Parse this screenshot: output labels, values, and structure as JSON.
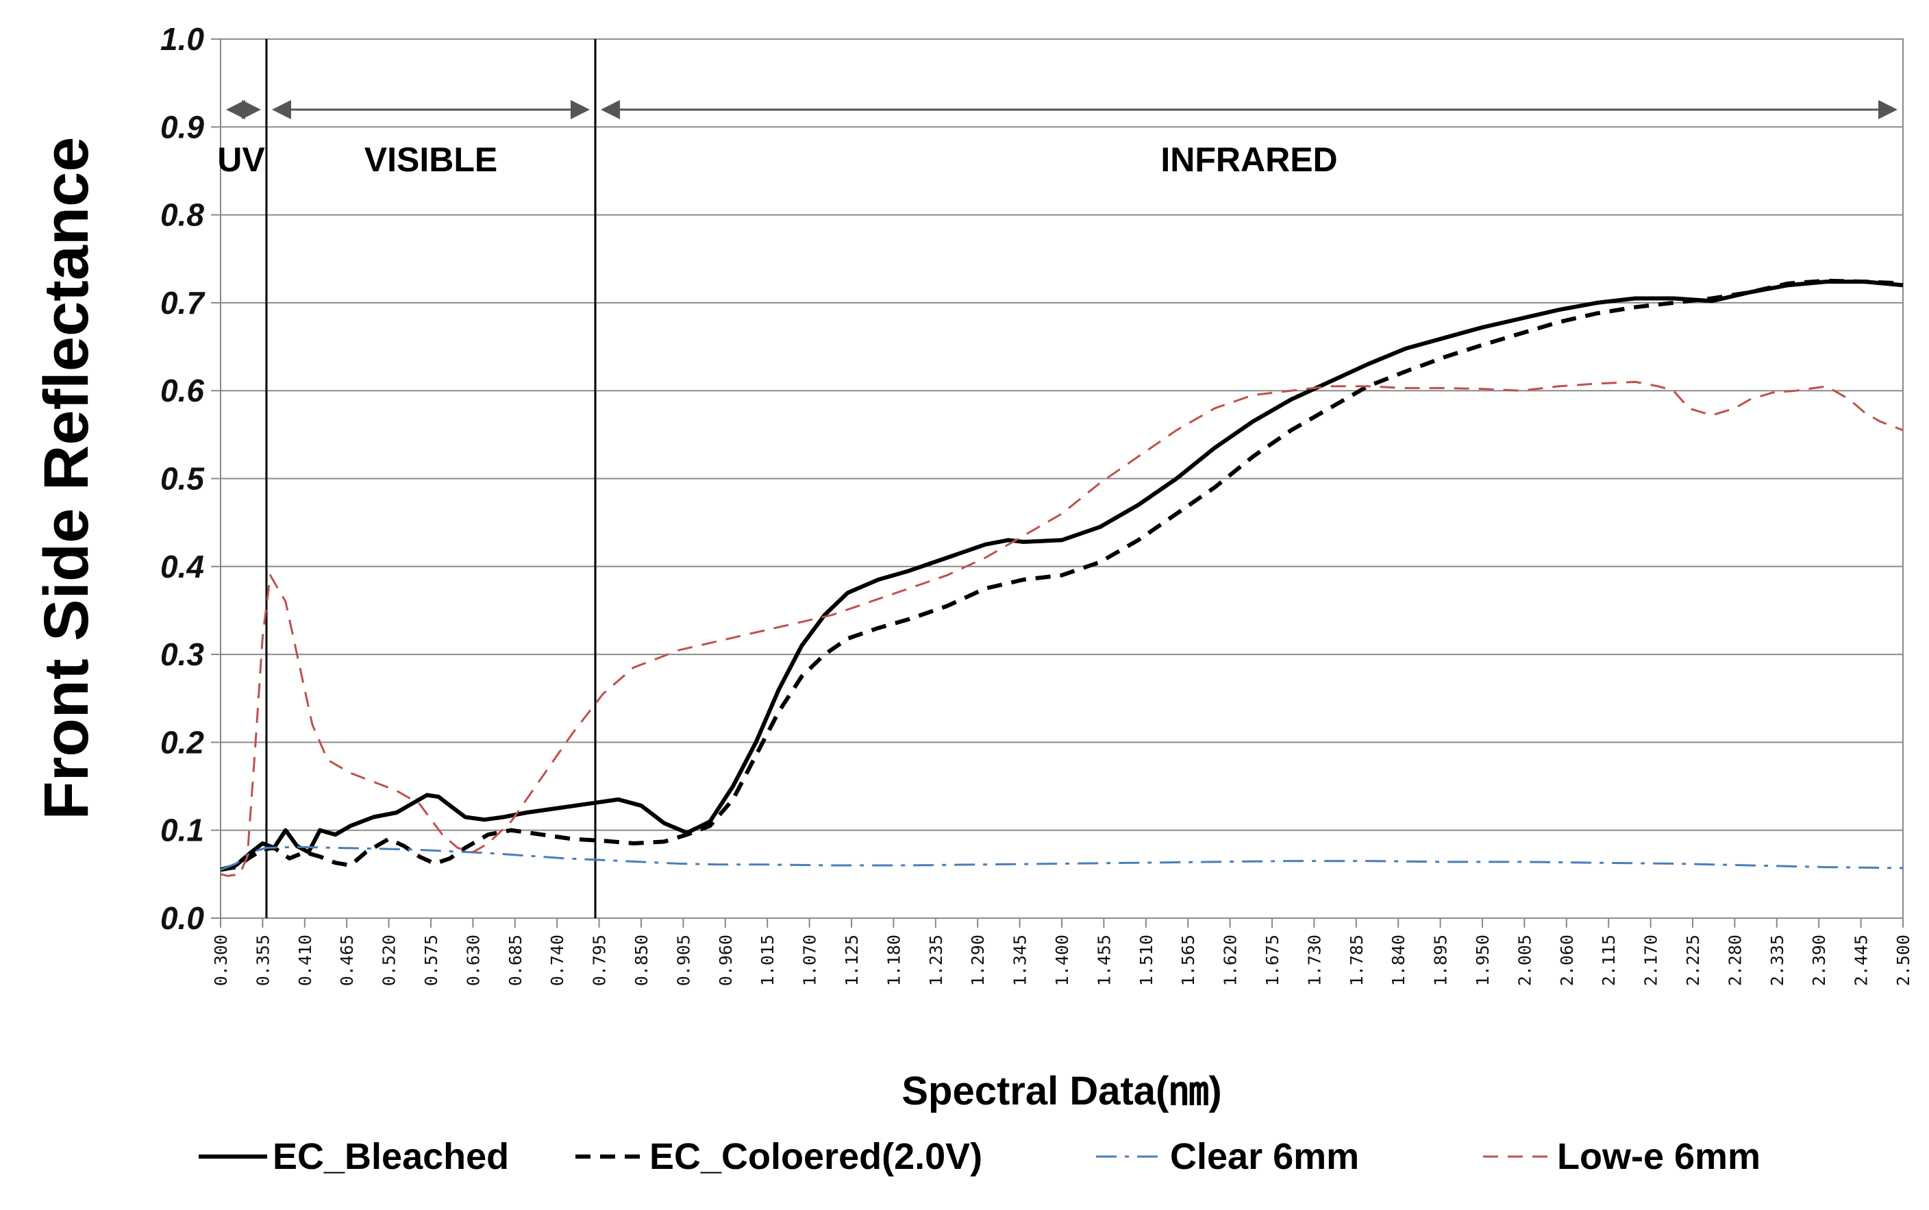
{
  "chart_data": {
    "type": "line",
    "title": "",
    "xlabel": "Spectral Data(㎚)",
    "ylabel": "Front Side Reflectance",
    "xlim": [
      0.3,
      2.5
    ],
    "ylim": [
      0.0,
      1.0
    ],
    "grid": true,
    "legend_position": "bottom",
    "y_ticks": [
      "0.0",
      "0.1",
      "0.2",
      "0.3",
      "0.4",
      "0.5",
      "0.6",
      "0.7",
      "0.8",
      "0.9",
      "1.0"
    ],
    "x_ticks": [
      "0.300",
      "0.355",
      "0.410",
      "0.465",
      "0.520",
      "0.575",
      "0.630",
      "0.685",
      "0.740",
      "0.795",
      "0.850",
      "0.905",
      "0.960",
      "1.015",
      "1.070",
      "1.125",
      "1.180",
      "1.235",
      "1.290",
      "1.345",
      "1.400",
      "1.455",
      "1.510",
      "1.565",
      "1.620",
      "1.675",
      "1.730",
      "1.785",
      "1.840",
      "1.895",
      "1.950",
      "2.005",
      "2.060",
      "2.115",
      "2.170",
      "2.225",
      "2.280",
      "2.335",
      "2.390",
      "2.445",
      "2.500"
    ],
    "regions": [
      {
        "label": "UV",
        "start": 0.3,
        "end": 0.36
      },
      {
        "label": "VISIBLE",
        "start": 0.36,
        "end": 0.79
      },
      {
        "label": "INFRARED",
        "start": 0.79,
        "end": 2.5
      }
    ],
    "region_dividers": [
      0.36,
      0.79
    ],
    "series": [
      {
        "name": "EC_Bleached",
        "color": "#000000",
        "style": "solid",
        "points": [
          [
            0.3,
            0.055
          ],
          [
            0.32,
            0.06
          ],
          [
            0.34,
            0.075
          ],
          [
            0.355,
            0.085
          ],
          [
            0.37,
            0.08
          ],
          [
            0.385,
            0.1
          ],
          [
            0.4,
            0.082
          ],
          [
            0.415,
            0.075
          ],
          [
            0.43,
            0.1
          ],
          [
            0.45,
            0.095
          ],
          [
            0.47,
            0.105
          ],
          [
            0.5,
            0.115
          ],
          [
            0.53,
            0.12
          ],
          [
            0.55,
            0.13
          ],
          [
            0.57,
            0.14
          ],
          [
            0.585,
            0.138
          ],
          [
            0.6,
            0.128
          ],
          [
            0.62,
            0.115
          ],
          [
            0.645,
            0.112
          ],
          [
            0.67,
            0.115
          ],
          [
            0.7,
            0.12
          ],
          [
            0.74,
            0.125
          ],
          [
            0.78,
            0.13
          ],
          [
            0.82,
            0.135
          ],
          [
            0.85,
            0.128
          ],
          [
            0.88,
            0.108
          ],
          [
            0.91,
            0.097
          ],
          [
            0.94,
            0.11
          ],
          [
            0.97,
            0.15
          ],
          [
            1.0,
            0.2
          ],
          [
            1.03,
            0.26
          ],
          [
            1.06,
            0.31
          ],
          [
            1.09,
            0.345
          ],
          [
            1.12,
            0.37
          ],
          [
            1.16,
            0.385
          ],
          [
            1.2,
            0.395
          ],
          [
            1.25,
            0.41
          ],
          [
            1.3,
            0.425
          ],
          [
            1.33,
            0.43
          ],
          [
            1.35,
            0.428
          ],
          [
            1.4,
            0.43
          ],
          [
            1.45,
            0.445
          ],
          [
            1.5,
            0.47
          ],
          [
            1.55,
            0.5
          ],
          [
            1.6,
            0.535
          ],
          [
            1.65,
            0.565
          ],
          [
            1.7,
            0.59
          ],
          [
            1.75,
            0.61
          ],
          [
            1.8,
            0.63
          ],
          [
            1.85,
            0.648
          ],
          [
            1.9,
            0.66
          ],
          [
            1.95,
            0.672
          ],
          [
            2.0,
            0.682
          ],
          [
            2.05,
            0.692
          ],
          [
            2.1,
            0.7
          ],
          [
            2.15,
            0.705
          ],
          [
            2.2,
            0.705
          ],
          [
            2.25,
            0.702
          ],
          [
            2.3,
            0.712
          ],
          [
            2.35,
            0.72
          ],
          [
            2.4,
            0.724
          ],
          [
            2.45,
            0.724
          ],
          [
            2.5,
            0.72
          ]
        ]
      },
      {
        "name": "EC_Coloered(2.0V)",
        "color": "#000000",
        "style": "dashed",
        "points": [
          [
            0.3,
            0.055
          ],
          [
            0.32,
            0.058
          ],
          [
            0.34,
            0.07
          ],
          [
            0.355,
            0.078
          ],
          [
            0.37,
            0.08
          ],
          [
            0.39,
            0.068
          ],
          [
            0.41,
            0.075
          ],
          [
            0.43,
            0.07
          ],
          [
            0.45,
            0.063
          ],
          [
            0.47,
            0.06
          ],
          [
            0.49,
            0.075
          ],
          [
            0.51,
            0.085
          ],
          [
            0.52,
            0.09
          ],
          [
            0.54,
            0.082
          ],
          [
            0.56,
            0.07
          ],
          [
            0.58,
            0.062
          ],
          [
            0.6,
            0.068
          ],
          [
            0.62,
            0.08
          ],
          [
            0.65,
            0.095
          ],
          [
            0.68,
            0.1
          ],
          [
            0.72,
            0.095
          ],
          [
            0.76,
            0.09
          ],
          [
            0.8,
            0.088
          ],
          [
            0.84,
            0.085
          ],
          [
            0.88,
            0.087
          ],
          [
            0.91,
            0.095
          ],
          [
            0.94,
            0.105
          ],
          [
            0.97,
            0.135
          ],
          [
            1.0,
            0.185
          ],
          [
            1.03,
            0.235
          ],
          [
            1.06,
            0.275
          ],
          [
            1.09,
            0.3
          ],
          [
            1.12,
            0.318
          ],
          [
            1.16,
            0.33
          ],
          [
            1.2,
            0.34
          ],
          [
            1.25,
            0.355
          ],
          [
            1.3,
            0.375
          ],
          [
            1.35,
            0.385
          ],
          [
            1.4,
            0.39
          ],
          [
            1.45,
            0.405
          ],
          [
            1.5,
            0.43
          ],
          [
            1.55,
            0.46
          ],
          [
            1.6,
            0.49
          ],
          [
            1.65,
            0.525
          ],
          [
            1.7,
            0.555
          ],
          [
            1.75,
            0.58
          ],
          [
            1.8,
            0.605
          ],
          [
            1.85,
            0.622
          ],
          [
            1.9,
            0.638
          ],
          [
            1.95,
            0.652
          ],
          [
            2.0,
            0.665
          ],
          [
            2.05,
            0.678
          ],
          [
            2.1,
            0.688
          ],
          [
            2.15,
            0.695
          ],
          [
            2.2,
            0.7
          ],
          [
            2.25,
            0.705
          ],
          [
            2.3,
            0.712
          ],
          [
            2.35,
            0.722
          ],
          [
            2.4,
            0.725
          ],
          [
            2.45,
            0.724
          ],
          [
            2.5,
            0.722
          ]
        ]
      },
      {
        "name": "Clear 6mm",
        "color": "#4a7ebb",
        "style": "dashdot",
        "points": [
          [
            0.3,
            0.055
          ],
          [
            0.32,
            0.062
          ],
          [
            0.34,
            0.075
          ],
          [
            0.36,
            0.08
          ],
          [
            0.4,
            0.081
          ],
          [
            0.45,
            0.08
          ],
          [
            0.5,
            0.079
          ],
          [
            0.55,
            0.078
          ],
          [
            0.6,
            0.076
          ],
          [
            0.65,
            0.074
          ],
          [
            0.7,
            0.071
          ],
          [
            0.75,
            0.068
          ],
          [
            0.8,
            0.066
          ],
          [
            0.85,
            0.064
          ],
          [
            0.9,
            0.062
          ],
          [
            0.95,
            0.061
          ],
          [
            1.0,
            0.061
          ],
          [
            1.1,
            0.06
          ],
          [
            1.2,
            0.06
          ],
          [
            1.3,
            0.061
          ],
          [
            1.4,
            0.062
          ],
          [
            1.5,
            0.063
          ],
          [
            1.6,
            0.064
          ],
          [
            1.7,
            0.065
          ],
          [
            1.8,
            0.065
          ],
          [
            1.9,
            0.064
          ],
          [
            2.0,
            0.064
          ],
          [
            2.1,
            0.063
          ],
          [
            2.2,
            0.062
          ],
          [
            2.3,
            0.06
          ],
          [
            2.4,
            0.058
          ],
          [
            2.5,
            0.057
          ]
        ]
      },
      {
        "name": "Low-e 6mm",
        "color": "#c0504d",
        "style": "dashed",
        "points": [
          [
            0.3,
            0.05
          ],
          [
            0.31,
            0.048
          ],
          [
            0.325,
            0.05
          ],
          [
            0.335,
            0.07
          ],
          [
            0.345,
            0.19
          ],
          [
            0.355,
            0.32
          ],
          [
            0.365,
            0.39
          ],
          [
            0.375,
            0.375
          ],
          [
            0.385,
            0.36
          ],
          [
            0.4,
            0.3
          ],
          [
            0.42,
            0.22
          ],
          [
            0.44,
            0.18
          ],
          [
            0.47,
            0.165
          ],
          [
            0.5,
            0.155
          ],
          [
            0.53,
            0.145
          ],
          [
            0.56,
            0.13
          ],
          [
            0.59,
            0.095
          ],
          [
            0.61,
            0.08
          ],
          [
            0.63,
            0.075
          ],
          [
            0.65,
            0.085
          ],
          [
            0.68,
            0.11
          ],
          [
            0.72,
            0.16
          ],
          [
            0.76,
            0.21
          ],
          [
            0.8,
            0.255
          ],
          [
            0.84,
            0.285
          ],
          [
            0.9,
            0.305
          ],
          [
            0.95,
            0.315
          ],
          [
            1.0,
            0.325
          ],
          [
            1.05,
            0.335
          ],
          [
            1.1,
            0.345
          ],
          [
            1.15,
            0.36
          ],
          [
            1.2,
            0.375
          ],
          [
            1.25,
            0.39
          ],
          [
            1.3,
            0.41
          ],
          [
            1.35,
            0.435
          ],
          [
            1.4,
            0.46
          ],
          [
            1.45,
            0.495
          ],
          [
            1.5,
            0.525
          ],
          [
            1.55,
            0.555
          ],
          [
            1.6,
            0.58
          ],
          [
            1.65,
            0.595
          ],
          [
            1.7,
            0.6
          ],
          [
            1.75,
            0.605
          ],
          [
            1.8,
            0.605
          ],
          [
            1.85,
            0.603
          ],
          [
            1.9,
            0.603
          ],
          [
            1.95,
            0.602
          ],
          [
            2.0,
            0.6
          ],
          [
            2.05,
            0.605
          ],
          [
            2.1,
            0.608
          ],
          [
            2.15,
            0.61
          ],
          [
            2.18,
            0.605
          ],
          [
            2.2,
            0.6
          ],
          [
            2.22,
            0.58
          ],
          [
            2.25,
            0.572
          ],
          [
            2.28,
            0.58
          ],
          [
            2.3,
            0.59
          ],
          [
            2.33,
            0.598
          ],
          [
            2.36,
            0.6
          ],
          [
            2.4,
            0.605
          ],
          [
            2.43,
            0.59
          ],
          [
            2.45,
            0.575
          ],
          [
            2.47,
            0.565
          ],
          [
            2.5,
            0.555
          ]
        ]
      }
    ]
  }
}
